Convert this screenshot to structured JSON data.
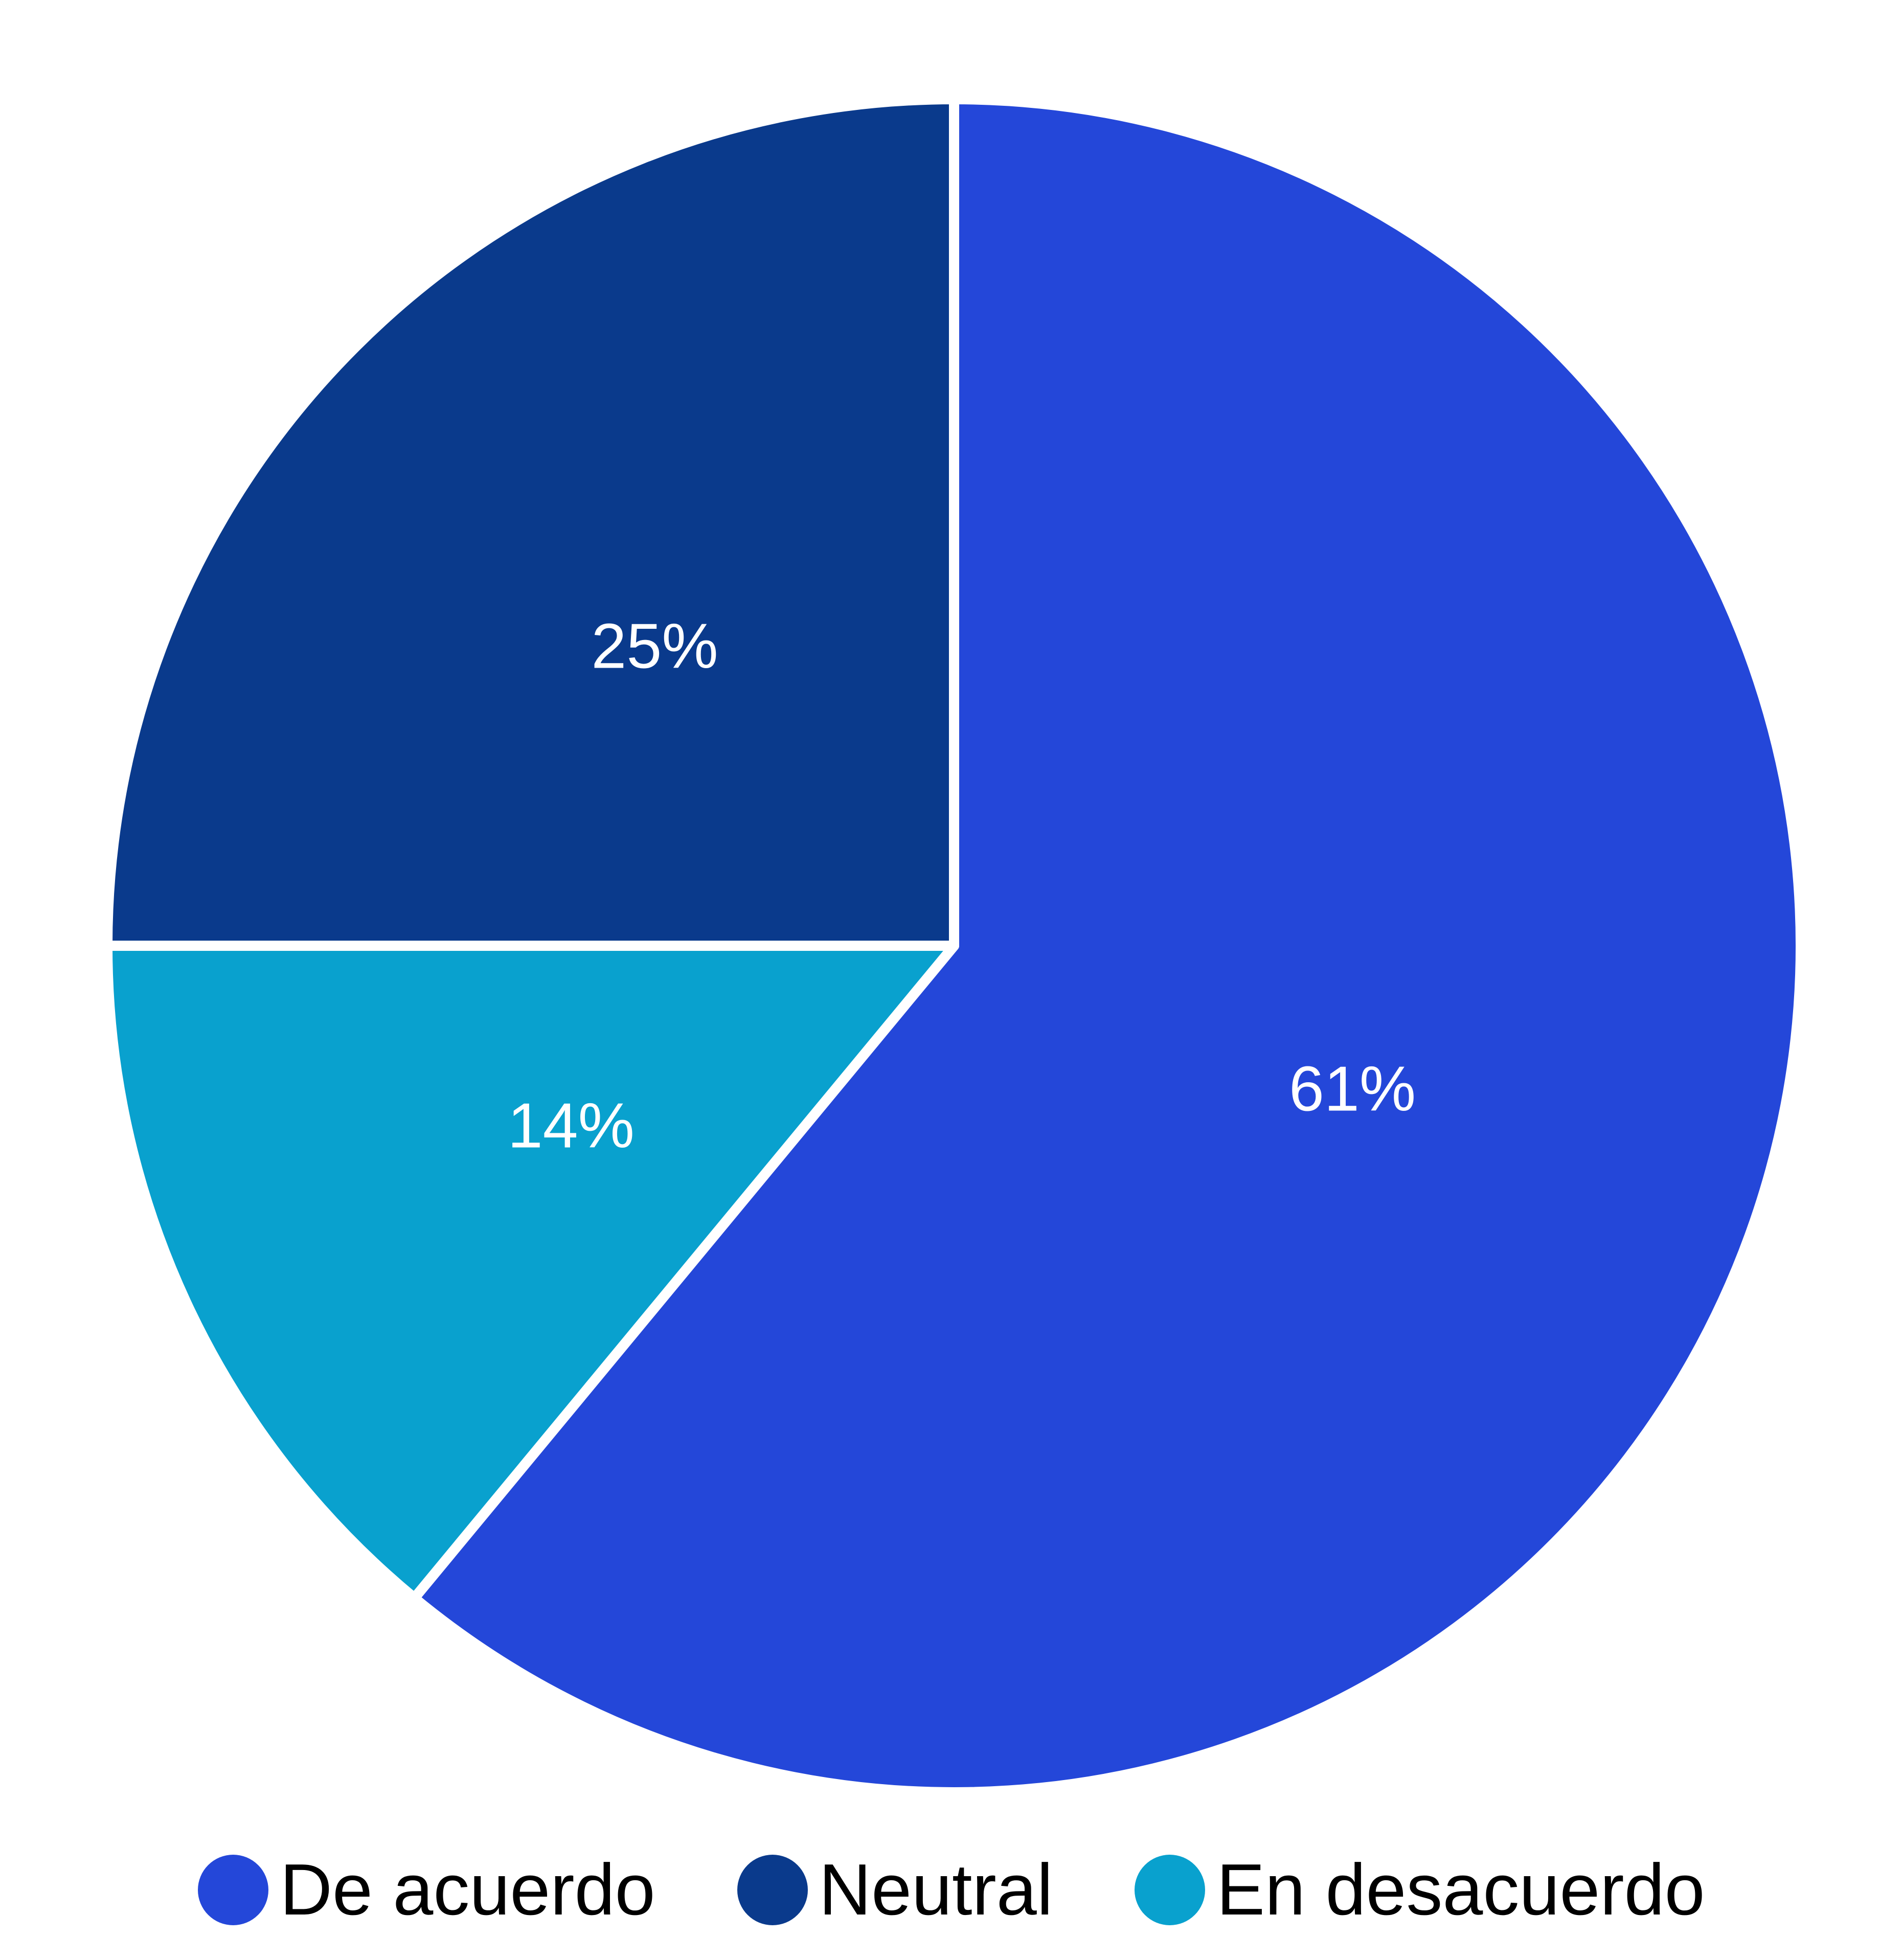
{
  "page": {
    "background": "#ffffff"
  },
  "chart_data": {
    "type": "pie",
    "title": "",
    "categories": [
      "De acuerdo",
      "Neutral",
      "En desacuerdo"
    ],
    "values": [
      61,
      25,
      14
    ],
    "slice_labels": [
      "61%",
      "25%",
      "14%"
    ],
    "colors": [
      "#2447d9",
      "#0a3a8c",
      "#09a1ce"
    ],
    "label_color": "#ffffff",
    "slice_border_color": "#ffffff",
    "legend_position": "bottom",
    "legend_text_color": "#000000",
    "start_angle_deg": 0,
    "direction": "clockwise",
    "draw_order_clockwise": [
      "De acuerdo",
      "En desacuerdo",
      "Neutral"
    ]
  }
}
